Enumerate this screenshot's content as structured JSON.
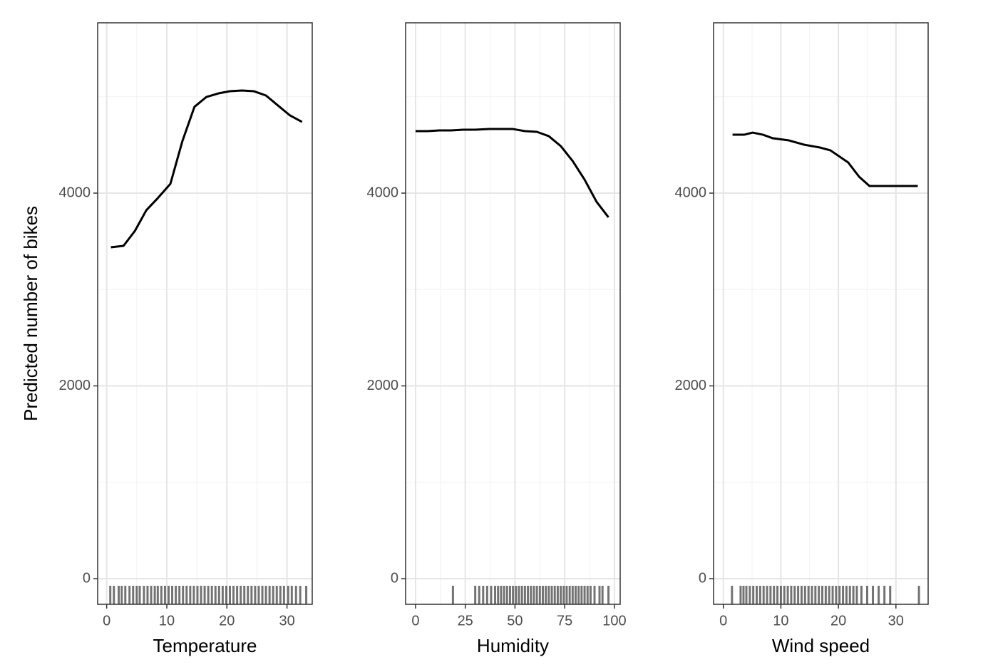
{
  "chart_data": [
    {
      "type": "line",
      "xlabel": "Temperature",
      "ylabel": "Predicted number of bikes",
      "x": [
        0.7,
        2.8,
        4.7,
        6.6,
        8.5,
        10.6,
        12.6,
        14.6,
        16.6,
        18.6,
        20.5,
        22.5,
        24.5,
        26.5,
        28.5,
        30.5,
        32.5
      ],
      "values": [
        3438,
        3453,
        3608,
        3823,
        3948,
        4096,
        4540,
        4895,
        4998,
        5035,
        5057,
        5065,
        5057,
        5013,
        4909,
        4806,
        4739
      ],
      "color": "#000000",
      "rug": [
        0.6,
        1.2,
        2,
        2.5,
        3.1,
        3.8,
        4.4,
        5,
        5.5,
        6.2,
        6.8,
        7.4,
        8,
        8.5,
        9.1,
        9.7,
        10.3,
        10.9,
        11.5,
        12.1,
        12.7,
        13.3,
        13.9,
        14.5,
        15.1,
        15.7,
        16.3,
        16.9,
        17.5,
        18.1,
        18.7,
        19.3,
        19.9,
        20.5,
        21.1,
        21.7,
        22.3,
        22.9,
        23.5,
        24.1,
        24.7,
        25.3,
        25.9,
        26.5,
        27.1,
        27.7,
        28.3,
        28.9,
        29.5,
        30.2,
        30.8,
        31.5,
        32.2,
        33.2
      ],
      "xlim": [
        -1.5,
        34.2
      ],
      "xticks": [
        0,
        10,
        20,
        30
      ],
      "xminorticks": [
        5,
        15,
        25
      ],
      "ylim": [
        -266,
        5767
      ],
      "yticks": [
        0,
        2000,
        4000
      ],
      "yminorticks": [
        1000,
        3000,
        5000
      ],
      "grid": true
    },
    {
      "type": "line",
      "xlabel": "Humidity",
      "x": [
        0,
        6,
        12,
        18,
        24,
        30,
        37,
        43,
        49,
        55,
        61,
        67,
        73,
        79,
        85,
        91,
        97
      ],
      "values": [
        4643,
        4643,
        4651,
        4651,
        4658,
        4658,
        4665,
        4665,
        4665,
        4643,
        4636,
        4591,
        4488,
        4333,
        4140,
        3911,
        3749
      ],
      "color": "#000000",
      "rug": [
        18.8,
        30,
        32,
        34,
        36,
        38,
        40,
        41.5,
        43,
        44.5,
        46,
        47.5,
        49,
        50.5,
        52,
        53.5,
        55,
        56.5,
        58,
        59.5,
        61,
        62.5,
        64,
        65.5,
        67,
        68.5,
        70,
        71.5,
        73,
        74.5,
        76,
        77.5,
        79,
        80.5,
        82,
        83.5,
        85,
        86.5,
        88,
        90,
        92.5,
        94,
        97
      ],
      "xlim": [
        -5,
        102.9
      ],
      "xticks": [
        0,
        25,
        50,
        75,
        100
      ],
      "xminorticks": [
        12.5,
        37.5,
        62.5,
        87.5
      ],
      "ylim": [
        -266,
        5767
      ],
      "yticks": [
        0,
        2000,
        4000
      ],
      "yminorticks": [
        1000,
        3000,
        5000
      ],
      "grid": true
    },
    {
      "type": "line",
      "xlabel": "Wind speed",
      "x": [
        1.6,
        3.6,
        5.1,
        6.9,
        8.6,
        11.4,
        14.0,
        16.8,
        18.6,
        21.7,
        23.6,
        25.4,
        33.8
      ],
      "values": [
        4606,
        4606,
        4628,
        4606,
        4569,
        4547,
        4503,
        4473,
        4444,
        4318,
        4170,
        4074,
        4074
      ],
      "color": "#000000",
      "rug": [
        1.5,
        3,
        3.5,
        4,
        4.6,
        5.2,
        5.8,
        6.4,
        7,
        7.6,
        8.2,
        8.8,
        9.4,
        10,
        10.6,
        11.2,
        11.8,
        12.4,
        13,
        13.6,
        14.2,
        14.8,
        15.4,
        16,
        16.6,
        17.2,
        17.8,
        18.4,
        19,
        19.6,
        20.2,
        20.8,
        21.4,
        22,
        22.6,
        23.2,
        24,
        25,
        26,
        27,
        28,
        29,
        34
      ],
      "xlim": [
        -1.7,
        35.6
      ],
      "xticks": [
        0,
        10,
        20,
        30
      ],
      "xminorticks": [
        5,
        15,
        25
      ],
      "ylim": [
        -266,
        5767
      ],
      "yticks": [
        0,
        2000,
        4000
      ],
      "yminorticks": [
        1000,
        3000,
        5000
      ],
      "grid": true
    }
  ]
}
